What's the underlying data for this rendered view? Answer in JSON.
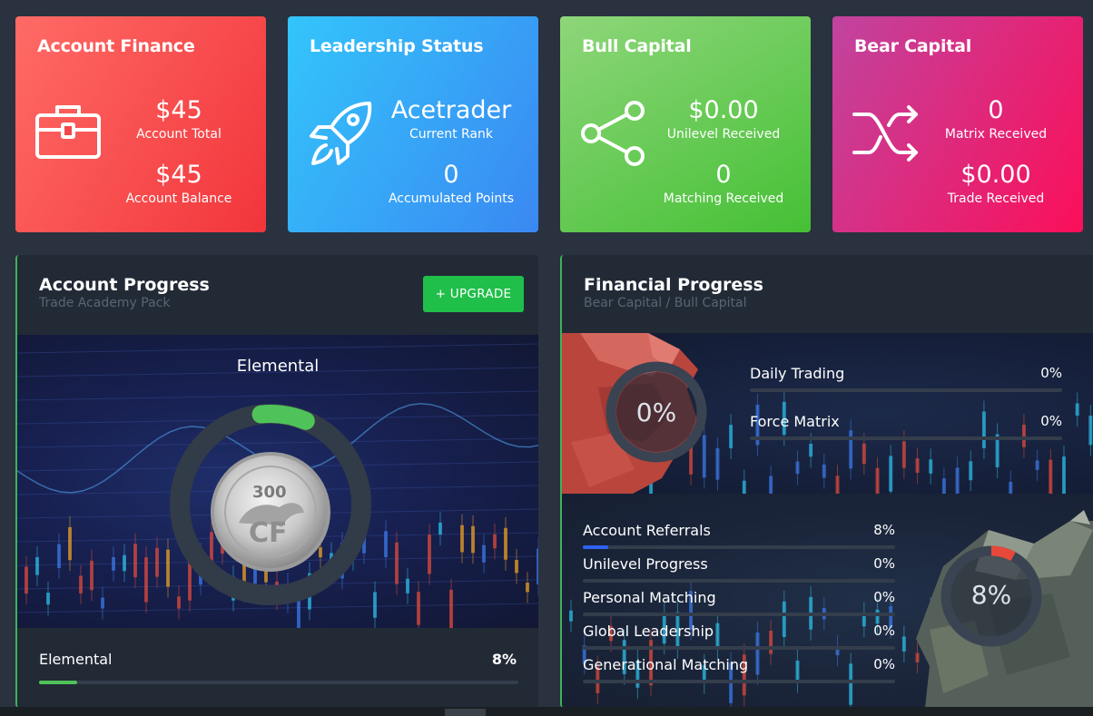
{
  "cards": {
    "finance": {
      "title": "Account Finance",
      "icon": "briefcase-icon",
      "account_total_value": "$45",
      "account_total_label": "Account Total",
      "account_balance_value": "$45",
      "account_balance_label": "Account Balance"
    },
    "leadership": {
      "title": "Leadership Status",
      "icon": "rocket-icon",
      "rank_value": "Acetrader",
      "rank_label": "Current Rank",
      "points_value": "0",
      "points_label": "Accumulated Points"
    },
    "bull": {
      "title": "Bull Capital",
      "icon": "share-icon",
      "unilevel_value": "$0.00",
      "unilevel_label": "Unilevel Received",
      "matching_value": "0",
      "matching_label": "Matching Received"
    },
    "bear": {
      "title": "Bear Capital",
      "icon": "shuffle-icon",
      "matrix_value": "0",
      "matrix_label": "Matrix Received",
      "trade_value": "$0.00",
      "trade_label": "Trade Received"
    }
  },
  "account_progress": {
    "title": "Account Progress",
    "subtitle": "Trade Academy Pack",
    "upgrade_label": "+ UPGRADE",
    "hero_title": "Elemental",
    "coin_text": "300",
    "ring_progress": 0.08,
    "footer_label": "Elemental",
    "footer_value": "8%",
    "footer_progress": 0.08,
    "colors": {
      "accent": "#4fc35a",
      "button": "#1fbf4a"
    }
  },
  "financial_progress": {
    "title": "Financial Progress",
    "subtitle": "Bear Capital / Bull Capital",
    "bear": {
      "donut_text": "0%",
      "donut_progress": 0,
      "rows": [
        {
          "label": "Daily Trading",
          "value": "0%",
          "progress": 0
        },
        {
          "label": "Force Matrix",
          "value": "0%",
          "progress": 0
        }
      ]
    },
    "bull": {
      "donut_text": "8%",
      "donut_progress": 0.08,
      "donut_color": "#e8483a",
      "rows": [
        {
          "label": "Account Referrals",
          "value": "8%",
          "progress": 0.08,
          "color": "#2e62f0"
        },
        {
          "label": "Unilevel Progress",
          "value": "0%",
          "progress": 0
        },
        {
          "label": "Personal Matching",
          "value": "0%",
          "progress": 0
        },
        {
          "label": "Global Leadership",
          "value": "0%",
          "progress": 0
        },
        {
          "label": "Generational Matching",
          "value": "0%",
          "progress": 0
        }
      ]
    }
  }
}
